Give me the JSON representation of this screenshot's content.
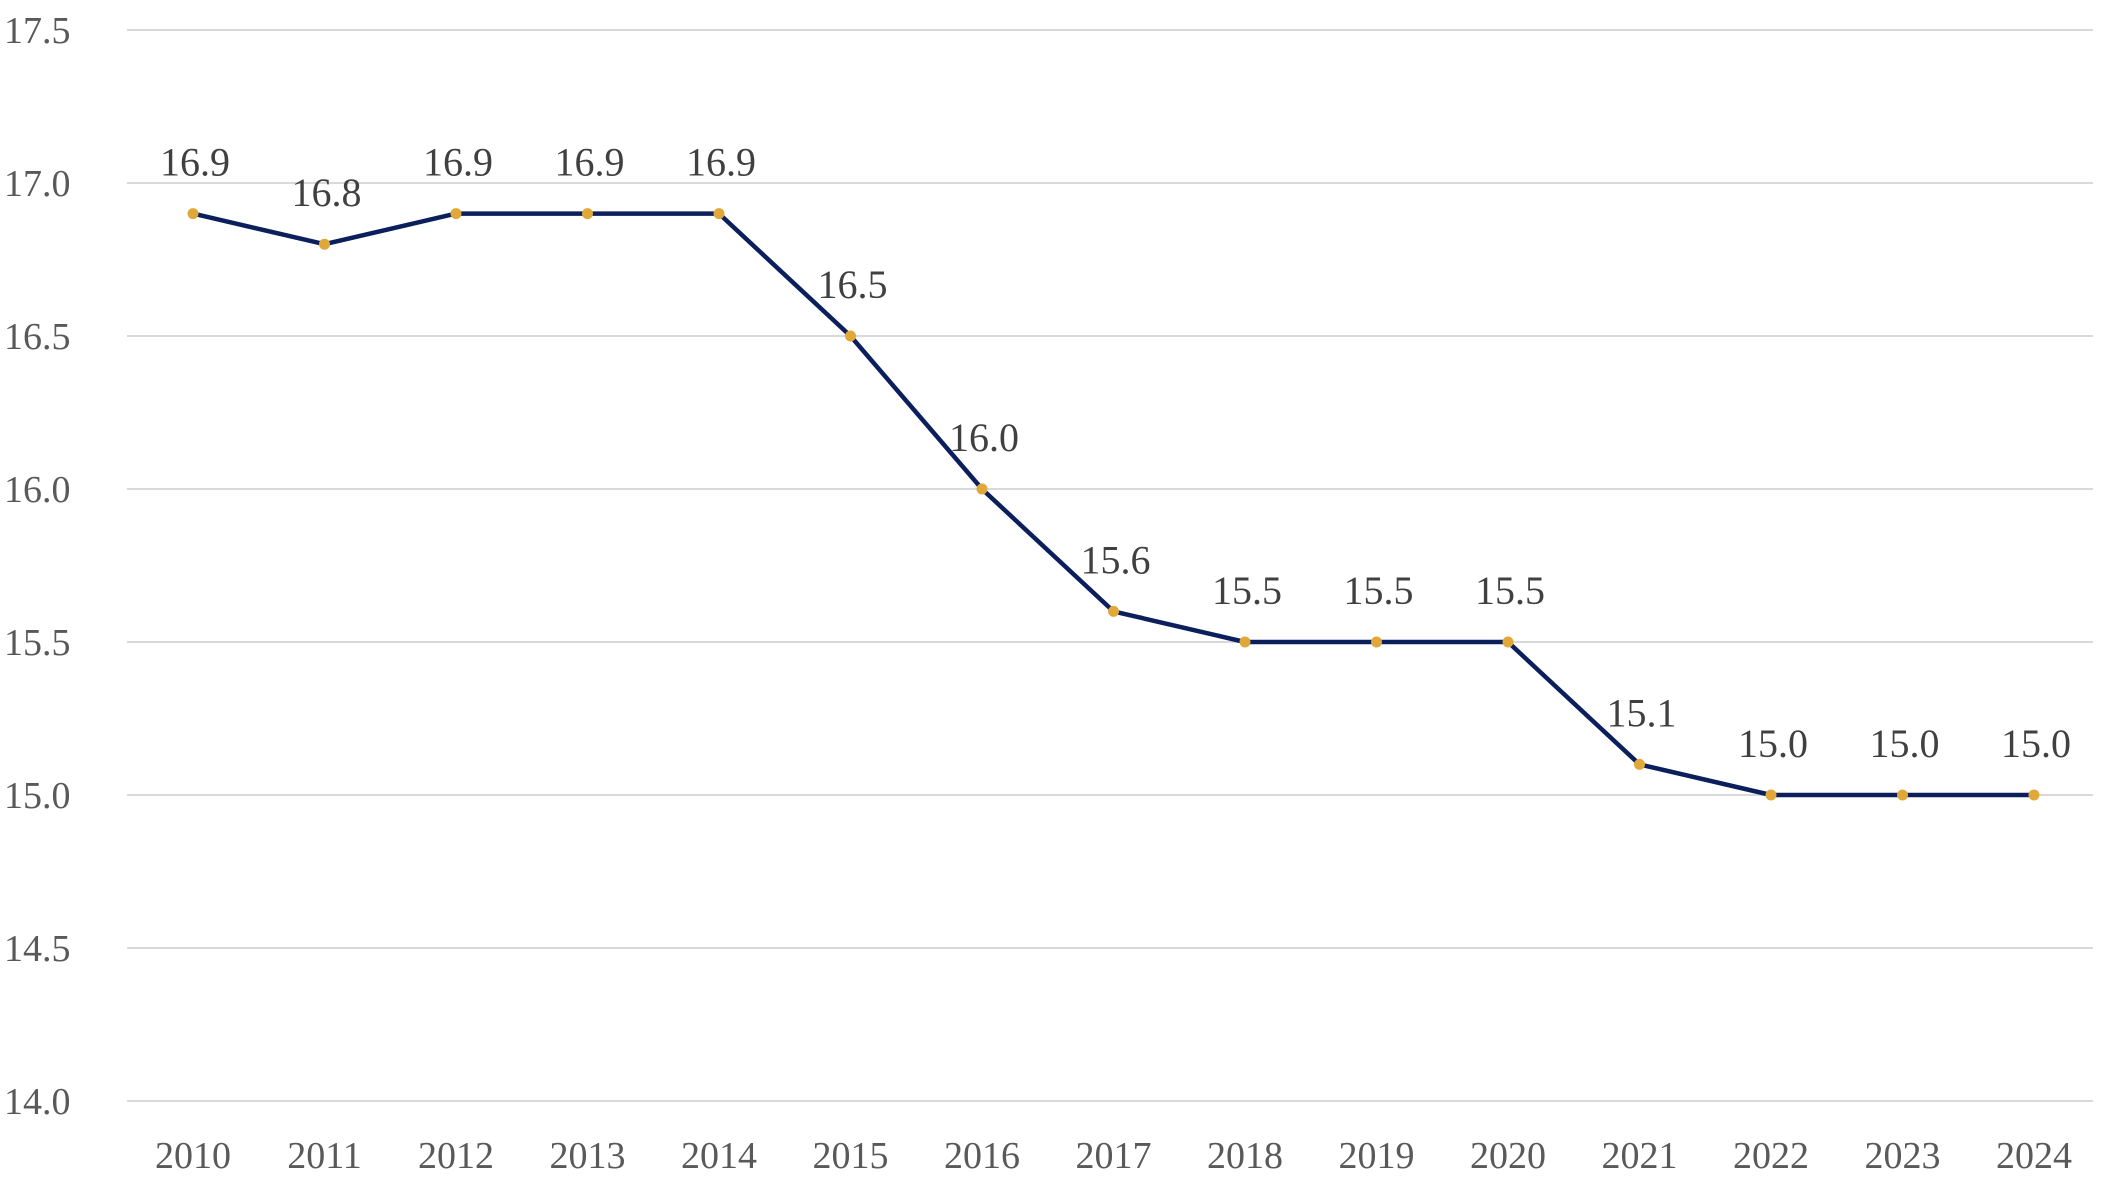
{
  "chart_data": {
    "type": "line",
    "title": "",
    "xlabel": "",
    "ylabel": "",
    "categories": [
      "2010",
      "2011",
      "2012",
      "2013",
      "2014",
      "2015",
      "2016",
      "2017",
      "2018",
      "2019",
      "2020",
      "2021",
      "2022",
      "2023",
      "2024"
    ],
    "series": [
      {
        "values": [
          16.9,
          16.8,
          16.9,
          16.9,
          16.9,
          16.5,
          16.0,
          15.6,
          15.5,
          15.5,
          15.5,
          15.1,
          15.0,
          15.0,
          15.0
        ],
        "data_labels": [
          "16.9",
          "16.8",
          "16.9",
          "16.9",
          "16.9",
          "16.5",
          "16.0",
          "15.6",
          "15.5",
          "15.5",
          "15.5",
          "15.1",
          "15.0",
          "15.0",
          "15.0"
        ],
        "line_color": "#0b1f5c",
        "marker_color": "#e0a838"
      }
    ],
    "ylim": [
      14.0,
      17.5
    ],
    "y_ticks": [
      "17.5",
      "17.0",
      "16.5",
      "16.0",
      "15.5",
      "15.0",
      "14.5",
      "14.0"
    ],
    "grid": true,
    "legend": "none"
  },
  "colors": {
    "line": "#0b1f5c",
    "marker": "#e0a838",
    "grid": "#d9d9d9",
    "axis_text": "#595959",
    "label_text": "#404040"
  }
}
